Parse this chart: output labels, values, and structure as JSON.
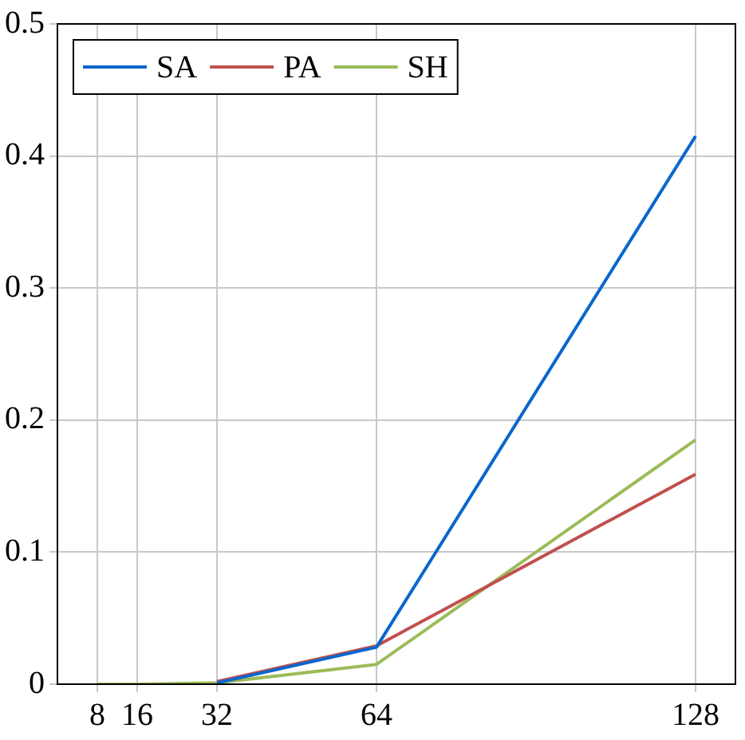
{
  "chart_data": {
    "type": "line",
    "x": [
      8,
      16,
      32,
      64,
      128
    ],
    "xlim": [
      0,
      136
    ],
    "xticks": [
      8,
      16,
      32,
      64,
      128
    ],
    "ylim": [
      0,
      0.5
    ],
    "yticks": [
      0,
      0.1,
      0.2,
      0.3,
      0.4,
      0.5
    ],
    "grid": true,
    "legend": "top left",
    "marker": "none",
    "series": [
      {
        "name": "SA",
        "color": "#0a66cc",
        "values": [
          null,
          null,
          0.001,
          0.028,
          0.415
        ]
      },
      {
        "name": "PA",
        "color": "#c0504d",
        "values": [
          null,
          null,
          0.002,
          0.029,
          0.159
        ]
      },
      {
        "name": "SH",
        "color": "#9bbb59",
        "values": [
          0,
          0,
          0.001,
          0.015,
          0.185
        ]
      }
    ]
  }
}
